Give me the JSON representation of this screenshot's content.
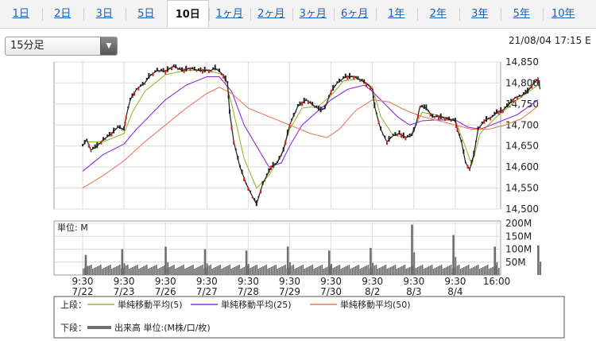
{
  "tabs": [
    "1日",
    "2日",
    "3日",
    "5日",
    "10日",
    "1ヶ月",
    "2ヶ月",
    "3ヶ月",
    "6ヶ月",
    "1年",
    "2年",
    "3年",
    "5年",
    "10年"
  ],
  "active_tab": "10日",
  "period_select": "15分足",
  "timestamp": "21/08/04 17:15 E",
  "chart_data": {
    "type": "line",
    "price_axis": {
      "ylim": [
        14500,
        14850
      ],
      "ticks": [
        "14,850",
        "14,800",
        "14,750",
        "14,700",
        "14,650",
        "14,600",
        "14,550",
        "14,500"
      ]
    },
    "volume_axis": {
      "unit_label": "単位: M",
      "ylim": [
        0,
        200
      ],
      "ticks": [
        "200M",
        "150M",
        "100M",
        "50M"
      ]
    },
    "x_ticks": [
      {
        "time": "9:30",
        "date": "7/22"
      },
      {
        "time": "9:30",
        "date": "7/23"
      },
      {
        "time": "9:30",
        "date": "7/26"
      },
      {
        "time": "9:30",
        "date": "7/27"
      },
      {
        "time": "9:30",
        "date": "7/28"
      },
      {
        "time": "9:30",
        "date": "7/29"
      },
      {
        "time": "9:30",
        "date": "7/30"
      },
      {
        "time": "9:30",
        "date": "8/2"
      },
      {
        "time": "9:30",
        "date": "8/3"
      },
      {
        "time": "9:30",
        "date": "8/4"
      },
      {
        "time": "16:00",
        "date": ""
      }
    ],
    "price_path": [
      [
        0,
        14650
      ],
      [
        0.1,
        14665
      ],
      [
        0.2,
        14640
      ],
      [
        0.35,
        14650
      ],
      [
        0.5,
        14665
      ],
      [
        0.7,
        14680
      ],
      [
        0.85,
        14695
      ],
      [
        1,
        14690
      ],
      [
        1.05,
        14720
      ],
      [
        1.15,
        14760
      ],
      [
        1.3,
        14785
      ],
      [
        1.5,
        14800
      ],
      [
        1.6,
        14815
      ],
      [
        1.8,
        14830
      ],
      [
        2,
        14828
      ],
      [
        2.2,
        14840
      ],
      [
        2.4,
        14830
      ],
      [
        2.6,
        14835
      ],
      [
        2.8,
        14830
      ],
      [
        3,
        14830
      ],
      [
        3.1,
        14830
      ],
      [
        3.2,
        14835
      ],
      [
        3.3,
        14828
      ],
      [
        3.4,
        14818
      ],
      [
        3.5,
        14800
      ],
      [
        3.55,
        14730
      ],
      [
        3.65,
        14660
      ],
      [
        3.8,
        14600
      ],
      [
        3.95,
        14560
      ],
      [
        4.1,
        14530
      ],
      [
        4.2,
        14512
      ],
      [
        4.35,
        14560
      ],
      [
        4.55,
        14600
      ],
      [
        4.7,
        14610
      ],
      [
        4.85,
        14640
      ],
      [
        5,
        14700
      ],
      [
        5.2,
        14745
      ],
      [
        5.4,
        14760
      ],
      [
        5.6,
        14745
      ],
      [
        5.75,
        14735
      ],
      [
        5.85,
        14740
      ],
      [
        6,
        14780
      ],
      [
        6.15,
        14800
      ],
      [
        6.35,
        14815
      ],
      [
        6.55,
        14815
      ],
      [
        6.75,
        14805
      ],
      [
        6.9,
        14795
      ],
      [
        7,
        14785
      ],
      [
        7.05,
        14745
      ],
      [
        7.2,
        14690
      ],
      [
        7.35,
        14660
      ],
      [
        7.5,
        14675
      ],
      [
        7.65,
        14680
      ],
      [
        7.8,
        14670
      ],
      [
        7.95,
        14675
      ],
      [
        8.05,
        14700
      ],
      [
        8.15,
        14745
      ],
      [
        8.3,
        14740
      ],
      [
        8.45,
        14720
      ],
      [
        8.6,
        14720
      ],
      [
        8.8,
        14715
      ],
      [
        9,
        14710
      ],
      [
        9.05,
        14690
      ],
      [
        9.15,
        14660
      ],
      [
        9.25,
        14610
      ],
      [
        9.35,
        14595
      ],
      [
        9.45,
        14630
      ],
      [
        9.55,
        14690
      ],
      [
        9.7,
        14710
      ],
      [
        9.9,
        14720
      ],
      [
        10,
        14730
      ],
      [
        10.15,
        14735
      ],
      [
        10.3,
        14750
      ],
      [
        10.45,
        14765
      ],
      [
        10.6,
        14770
      ],
      [
        10.75,
        14780
      ],
      [
        10.9,
        14800
      ],
      [
        11,
        14810
      ],
      [
        11.05,
        14785
      ]
    ],
    "series": [
      {
        "name": "単純移動平均(5)",
        "color": "#9ab833",
        "values": [
          [
            0.1,
            14660
          ],
          [
            0.5,
            14660
          ],
          [
            1,
            14680
          ],
          [
            1.2,
            14730
          ],
          [
            1.5,
            14780
          ],
          [
            2,
            14820
          ],
          [
            2.5,
            14830
          ],
          [
            3,
            14830
          ],
          [
            3.4,
            14820
          ],
          [
            3.6,
            14750
          ],
          [
            3.9,
            14620
          ],
          [
            4.2,
            14550
          ],
          [
            4.5,
            14580
          ],
          [
            4.8,
            14630
          ],
          [
            5,
            14690
          ],
          [
            5.3,
            14740
          ],
          [
            5.7,
            14745
          ],
          [
            6,
            14770
          ],
          [
            6.3,
            14805
          ],
          [
            6.7,
            14810
          ],
          [
            7,
            14790
          ],
          [
            7.2,
            14720
          ],
          [
            7.5,
            14675
          ],
          [
            7.9,
            14672
          ],
          [
            8.2,
            14730
          ],
          [
            8.5,
            14725
          ],
          [
            9,
            14712
          ],
          [
            9.2,
            14660
          ],
          [
            9.4,
            14605
          ],
          [
            9.6,
            14680
          ],
          [
            10,
            14720
          ],
          [
            10.5,
            14760
          ],
          [
            11,
            14795
          ]
        ]
      },
      {
        "name": "単純移動平均(25)",
        "color": "#8a2be2",
        "values": [
          [
            0,
            14590
          ],
          [
            0.5,
            14630
          ],
          [
            1,
            14655
          ],
          [
            1.3,
            14690
          ],
          [
            1.7,
            14730
          ],
          [
            2,
            14760
          ],
          [
            2.5,
            14795
          ],
          [
            3,
            14815
          ],
          [
            3.3,
            14815
          ],
          [
            3.6,
            14780
          ],
          [
            3.9,
            14700
          ],
          [
            4.2,
            14650
          ],
          [
            4.5,
            14600
          ],
          [
            4.8,
            14610
          ],
          [
            5,
            14650
          ],
          [
            5.3,
            14700
          ],
          [
            5.7,
            14735
          ],
          [
            6,
            14760
          ],
          [
            6.4,
            14785
          ],
          [
            6.8,
            14795
          ],
          [
            7,
            14780
          ],
          [
            7.3,
            14750
          ],
          [
            7.6,
            14720
          ],
          [
            7.9,
            14700
          ],
          [
            8.2,
            14710
          ],
          [
            8.5,
            14712
          ],
          [
            9,
            14712
          ],
          [
            9.3,
            14695
          ],
          [
            9.6,
            14690
          ],
          [
            10,
            14705
          ],
          [
            10.5,
            14725
          ],
          [
            11,
            14760
          ]
        ]
      },
      {
        "name": "単純移動平均(50)",
        "color": "#e87a5c",
        "values": [
          [
            0,
            14550
          ],
          [
            0.5,
            14580
          ],
          [
            1,
            14615
          ],
          [
            1.5,
            14660
          ],
          [
            2,
            14700
          ],
          [
            2.5,
            14740
          ],
          [
            3,
            14775
          ],
          [
            3.3,
            14790
          ],
          [
            3.6,
            14775
          ],
          [
            4,
            14740
          ],
          [
            4.5,
            14720
          ],
          [
            5,
            14700
          ],
          [
            5.5,
            14680
          ],
          [
            5.9,
            14670
          ],
          [
            6.2,
            14690
          ],
          [
            6.6,
            14735
          ],
          [
            7,
            14760
          ],
          [
            7.4,
            14755
          ],
          [
            7.8,
            14735
          ],
          [
            8.2,
            14720
          ],
          [
            8.6,
            14710
          ],
          [
            9,
            14700
          ],
          [
            9.4,
            14690
          ],
          [
            9.8,
            14690
          ],
          [
            10.2,
            14700
          ],
          [
            10.6,
            14715
          ],
          [
            11,
            14745
          ]
        ]
      }
    ],
    "volume_bars": [
      {
        "x": 0.07,
        "v": 78
      },
      {
        "x": 0.95,
        "v": 100
      },
      {
        "x": 2.0,
        "v": 110
      },
      {
        "x": 2.95,
        "v": 100
      },
      {
        "x": 3.95,
        "v": 95
      },
      {
        "x": 4.95,
        "v": 110
      },
      {
        "x": 5.95,
        "v": 95
      },
      {
        "x": 6.95,
        "v": 105
      },
      {
        "x": 7.95,
        "v": 195
      },
      {
        "x": 8.95,
        "v": 155
      },
      {
        "x": 9.95,
        "v": 110
      },
      {
        "x": 11.0,
        "v": 115
      }
    ],
    "legend": {
      "upper_label": "上段：",
      "lower_label": "下段：",
      "volume_label": "出来高 単位:(M株/口/枚)"
    }
  }
}
